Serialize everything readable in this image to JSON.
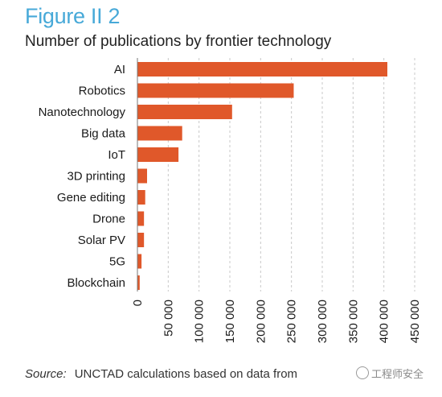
{
  "figure": {
    "label": "Figure II 2",
    "title": "Number of publications by frontier technology"
  },
  "source": {
    "label": "Source:",
    "text": "UNCTAD calculations based on data from"
  },
  "watermark": {
    "text": "工程师安全"
  },
  "colors": {
    "bar": "#e0582a",
    "grid": "#c8c8c8",
    "label_accent": "#47a9d8"
  },
  "chart_data": {
    "type": "bar",
    "orientation": "horizontal",
    "categories": [
      "AI",
      "Robotics",
      "Nanotechnology",
      "Big data",
      "IoT",
      "3D printing",
      "Gene editing",
      "Drone",
      "Solar PV",
      "5G",
      "Blockchain"
    ],
    "values": [
      405000,
      253000,
      153000,
      72000,
      66000,
      15000,
      12000,
      10000,
      10000,
      6000,
      3000
    ],
    "xlim": [
      0,
      450000
    ],
    "xticks": [
      0,
      50000,
      100000,
      150000,
      200000,
      250000,
      300000,
      350000,
      400000,
      450000
    ],
    "xtick_labels": [
      "0",
      "50 000",
      "100 000",
      "150 000",
      "200 000",
      "250 000",
      "300 000",
      "350 000",
      "400 000",
      "450 000"
    ],
    "grid": true,
    "grid_style": "dashed vertical",
    "xlabel": "",
    "ylabel": ""
  }
}
